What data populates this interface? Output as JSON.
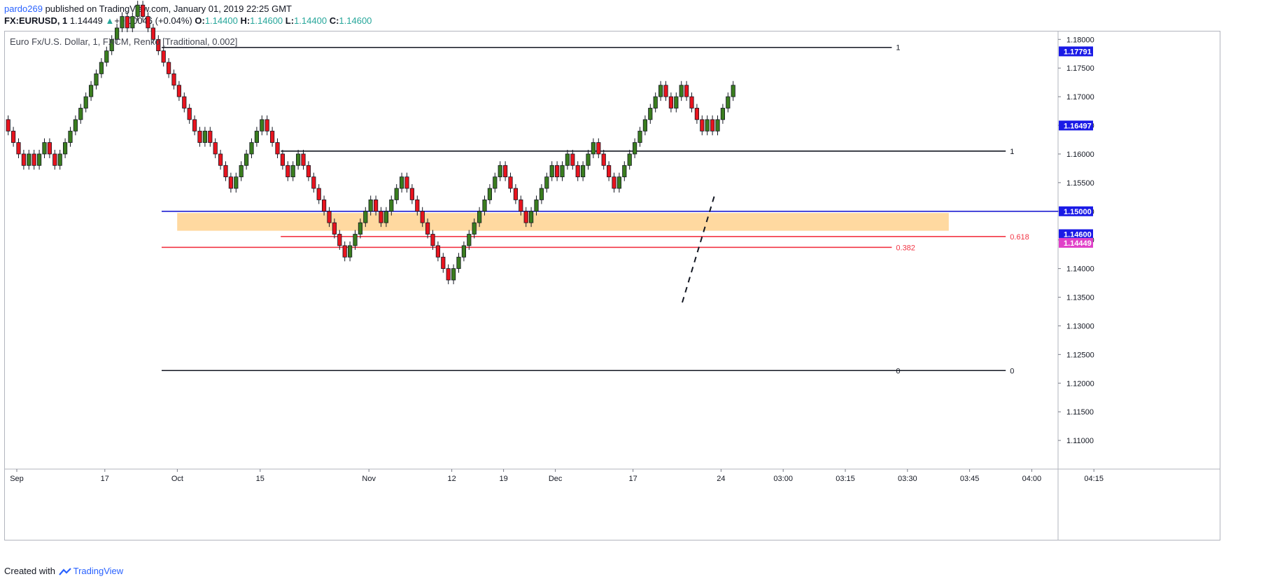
{
  "header": {
    "user": "pardo269",
    "published_text": " published on TradingView.com, January 01, 2019 22:25 GMT",
    "symbol": "FX:EURUSD, 1",
    "last": "1.14449",
    "change": "+0.00046 (+0.04%)",
    "o_label": "O:",
    "o_value": "1.14400",
    "h_label": "H:",
    "h_value": "1.14600",
    "l_label": "L:",
    "l_value": "1.14400",
    "c_label": "C:",
    "c_value": "1.14600"
  },
  "legend": "Euro Fx/U.S. Dollar, 1, FXCM, Renko [Traditional, 0.002]",
  "footer": {
    "created_with": "Created with",
    "brand": "TradingView"
  },
  "colors": {
    "up": "#3a7d1e",
    "down": "#e8141e",
    "blue_line": "#1e1ed2",
    "red_line": "#f23645",
    "zone": "#ffd9a0",
    "price_tag_blue": "#1a1ae6",
    "price_tag_magenta": "#e040c8"
  },
  "chart_data": {
    "type": "renko",
    "brick_size": 0.002,
    "ylim": [
      1.105,
      1.18138
    ],
    "y_ticks": [
      "1.11000",
      "1.11500",
      "1.12000",
      "1.12500",
      "1.13000",
      "1.13500",
      "1.14000",
      "1.14500",
      "1.15000",
      "1.15500",
      "1.16000",
      "1.16500",
      "1.17000",
      "1.17500",
      "1.18000"
    ],
    "x_ticks": [
      {
        "label": "Sep",
        "i": 0
      },
      {
        "label": "17",
        "i": 17
      },
      {
        "label": "Oct",
        "i": 31
      },
      {
        "label": "15",
        "i": 47
      },
      {
        "label": "Nov",
        "i": 68
      },
      {
        "label": "12",
        "i": 84
      },
      {
        "label": "19",
        "i": 94
      },
      {
        "label": "Dec",
        "i": 104
      },
      {
        "label": "17",
        "i": 119
      },
      {
        "label": "24",
        "i": 136
      },
      {
        "label": "03:00",
        "i": 148
      },
      {
        "label": "03:15",
        "i": 160
      },
      {
        "label": "03:30",
        "i": 172
      },
      {
        "label": "03:45",
        "i": 184
      },
      {
        "label": "04:00",
        "i": 196
      },
      {
        "label": "04:15",
        "i": 208
      }
    ],
    "bricks": [
      -1,
      -1,
      -1,
      -1,
      1,
      -1,
      1,
      1,
      -1,
      -1,
      1,
      1,
      1,
      1,
      1,
      1,
      1,
      1,
      1,
      1,
      1,
      1,
      1,
      -1,
      1,
      1,
      -1,
      -1,
      -1,
      -1,
      -1,
      -1,
      -1,
      -1,
      -1,
      -1,
      -1,
      -1,
      1,
      -1,
      -1,
      -1,
      -1,
      -1,
      1,
      1,
      1,
      1,
      1,
      1,
      -1,
      -1,
      -1,
      -1,
      -1,
      1,
      1,
      -1,
      -1,
      -1,
      -1,
      -1,
      -1,
      -1,
      -1,
      -1,
      1,
      1,
      1,
      1,
      1,
      -1,
      -1,
      1,
      1,
      1,
      1,
      -1,
      -1,
      -1,
      -1,
      -1,
      -1,
      -1,
      -1,
      -1,
      1,
      1,
      1,
      1,
      1,
      1,
      1,
      1,
      1,
      1,
      -1,
      -1,
      -1,
      -1,
      -1,
      1,
      1,
      1,
      1,
      1,
      -1,
      1,
      1,
      -1,
      -1,
      1,
      1,
      1,
      -1,
      -1,
      -1,
      -1,
      1,
      1,
      1,
      1,
      1,
      1,
      1,
      1,
      1,
      -1,
      -1,
      1,
      1,
      -1,
      -1,
      -1,
      -1,
      1,
      -1,
      1,
      1,
      1,
      1
    ],
    "start_price": 1.166,
    "levels": [
      {
        "label": "1",
        "price": 1.1786,
        "color": "#131722",
        "from_i": 30,
        "to_i": 171
      },
      {
        "label": "1",
        "price": 1.1605,
        "color": "#131722",
        "from_i": 53,
        "to_i": 193
      },
      {
        "label": "0",
        "price": 1.1222,
        "color": "#131722",
        "from_i": 53,
        "to_i": 193
      },
      {
        "label": "0",
        "price": 1.1222,
        "color": "#131722",
        "from_i": 30,
        "to_i": 171
      },
      {
        "label": "0.618",
        "price": 1.1456,
        "color": "#f23645",
        "from_i": 53,
        "to_i": 193
      },
      {
        "label": "0.382",
        "price": 1.1437,
        "color": "#f23645",
        "from_i": 30,
        "to_i": 171
      },
      {
        "label": "",
        "price": 1.15,
        "color": "#1e1ed2",
        "from_i": 30,
        "to_i": 999
      }
    ],
    "zone": {
      "top": 1.1497,
      "bottom": 1.1466,
      "from_i": 33,
      "to_i": 182
    },
    "price_tags": [
      {
        "label": "1.17791",
        "price": 1.17791,
        "color": "#1a1ae6"
      },
      {
        "label": "1.16497",
        "price": 1.16497,
        "color": "#1a1ae6"
      },
      {
        "label": "1.15000",
        "price": 1.15,
        "color": "#1a1ae6"
      },
      {
        "label": "1.14600",
        "price": 1.146,
        "color": "#1a1ae6"
      },
      {
        "label": "1.14449",
        "price": 1.14449,
        "color": "#e040c8"
      }
    ]
  }
}
